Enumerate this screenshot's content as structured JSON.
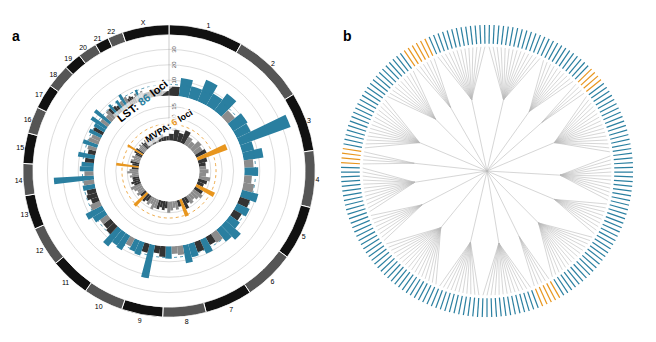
{
  "chart_data": [
    {
      "type": "circular_manhattan",
      "title": "a",
      "chromosomes": [
        {
          "name": "1",
          "length": 249
        },
        {
          "name": "2",
          "length": 242
        },
        {
          "name": "3",
          "length": 198
        },
        {
          "name": "4",
          "length": 190
        },
        {
          "name": "5",
          "length": 181
        },
        {
          "name": "6",
          "length": 171
        },
        {
          "name": "7",
          "length": 159
        },
        {
          "name": "8",
          "length": 145
        },
        {
          "name": "9",
          "length": 138
        },
        {
          "name": "10",
          "length": 134
        },
        {
          "name": "11",
          "length": 135
        },
        {
          "name": "12",
          "length": 133
        },
        {
          "name": "13",
          "length": 114
        },
        {
          "name": "14",
          "length": 107
        },
        {
          "name": "15",
          "length": 102
        },
        {
          "name": "16",
          "length": 90
        },
        {
          "name": "17",
          "length": 83
        },
        {
          "name": "18",
          "length": 80
        },
        {
          "name": "19",
          "length": 59
        },
        {
          "name": "20",
          "length": 64
        },
        {
          "name": "21",
          "length": 47
        },
        {
          "name": "22",
          "length": 51
        },
        {
          "name": "X",
          "length": 156
        }
      ],
      "series": [
        {
          "name": "LST: ",
          "loci": 86,
          "suffix": " loci",
          "color": "#2a7fa0",
          "ylim": [
            0,
            40
          ],
          "yticks": [
            10,
            20,
            30
          ],
          "threshold": 7.3,
          "values": [
            [
              6,
              12,
              8,
              15
            ],
            [
              9,
              14,
              6,
              11
            ],
            [
              10,
              35,
              8,
              13
            ],
            [
              6,
              9,
              5,
              7
            ],
            [
              11,
              7,
              9,
              6
            ],
            [
              8,
              13,
              10,
              7
            ],
            [
              6,
              10,
              7,
              9
            ],
            [
              12,
              6,
              5,
              8
            ],
            [
              7,
              5,
              22,
              6
            ],
            [
              9,
              8,
              6,
              11
            ],
            [
              10,
              14,
              7,
              6
            ],
            [
              6,
              9,
              12,
              7
            ],
            [
              5,
              7,
              6,
              8
            ],
            [
              7,
              26,
              6,
              9
            ],
            [
              8,
              6,
              11,
              5
            ],
            [
              6,
              10,
              7,
              6
            ],
            [
              9,
              7,
              8,
              12
            ],
            [
              6,
              13,
              5,
              7
            ],
            [
              7,
              9,
              6,
              5
            ],
            [
              8,
              6,
              10,
              7
            ],
            [
              5,
              6,
              5,
              4
            ],
            [
              6,
              8,
              5,
              6
            ],
            [
              4,
              5,
              4,
              3
            ]
          ]
        },
        {
          "name": "MVPA: ",
          "loci": 6,
          "suffix": " loci",
          "color": "#e8961e",
          "ylim": [
            0,
            20
          ],
          "yticks": [
            5,
            10,
            15
          ],
          "threshold": 7.3,
          "values": [
            [
              3,
              5,
              4,
              6
            ],
            [
              4,
              3,
              5,
              4
            ],
            [
              5,
              14,
              4,
              3
            ],
            [
              3,
              4,
              3,
              5
            ],
            [
              4,
              3,
              9,
              4
            ],
            [
              5,
              4,
              3,
              4
            ],
            [
              3,
              5,
              8,
              3
            ],
            [
              4,
              3,
              4,
              5
            ],
            [
              3,
              4,
              3,
              4
            ],
            [
              4,
              5,
              3,
              4
            ],
            [
              3,
              4,
              8,
              3
            ],
            [
              4,
              3,
              4,
              5
            ],
            [
              3,
              4,
              3,
              3
            ],
            [
              4,
              3,
              5,
              4
            ],
            [
              3,
              10,
              3,
              4
            ],
            [
              4,
              3,
              4,
              3
            ],
            [
              3,
              4,
              8,
              4
            ],
            [
              3,
              3,
              4,
              3
            ],
            [
              4,
              3,
              3,
              4
            ],
            [
              3,
              4,
              3,
              3
            ],
            [
              3,
              3,
              2,
              3
            ],
            [
              3,
              4,
              3,
              3
            ],
            [
              2,
              3,
              2,
              2
            ]
          ]
        }
      ],
      "colors": [
        "#333333",
        "#8c8c8c"
      ]
    },
    {
      "type": "dendrogram",
      "title": "b",
      "clusters": [
        {
          "size": 14,
          "color": "#2a7fa0"
        },
        {
          "size": 10,
          "color": "#2a7fa0"
        },
        {
          "size": 4,
          "color": "#e8961e"
        },
        {
          "size": 16,
          "color": "#2a7fa0"
        },
        {
          "size": 12,
          "color": "#2a7fa0"
        },
        {
          "size": 9,
          "color": "#2a7fa0"
        },
        {
          "size": 15,
          "color": "#2a7fa0"
        },
        {
          "size": 5,
          "color": "#e8961e"
        },
        {
          "size": 13,
          "color": "#2a7fa0"
        },
        {
          "size": 11,
          "color": "#2a7fa0"
        },
        {
          "size": 17,
          "color": "#2a7fa0"
        },
        {
          "size": 8,
          "color": "#2a7fa0"
        },
        {
          "size": 12,
          "color": "#2a7fa0"
        },
        {
          "size": 4,
          "color": "#e8961e"
        },
        {
          "size": 14,
          "color": "#2a7fa0"
        },
        {
          "size": 10,
          "color": "#2a7fa0"
        },
        {
          "size": 6,
          "color": "#e8961e"
        },
        {
          "size": 13,
          "color": "#2a7fa0"
        }
      ]
    }
  ]
}
